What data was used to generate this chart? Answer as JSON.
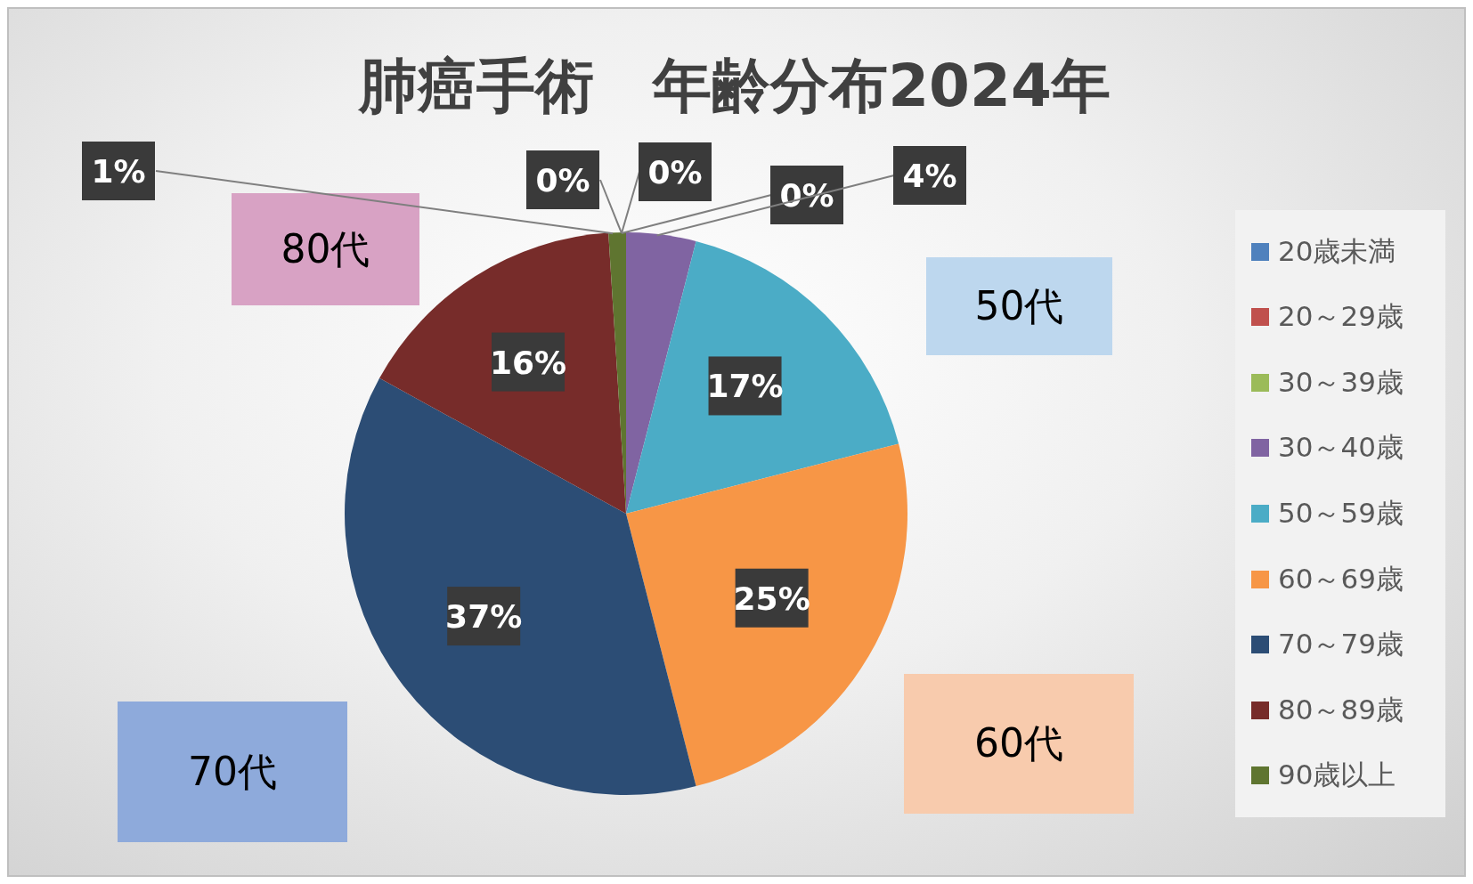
{
  "chart_data": {
    "type": "pie",
    "title": "肺癌手術　年齢分布2024年",
    "categories": [
      "20歳未満",
      "20～29歳",
      "30～39歳",
      "30～40歳",
      "50～59歳",
      "60～69歳",
      "70～79歳",
      "80～89歳",
      "90歳以上"
    ],
    "values": [
      0,
      0,
      0,
      4,
      17,
      25,
      37,
      16,
      1
    ],
    "colors": [
      "#4f81bd",
      "#c0504d",
      "#9bbb59",
      "#8064a2",
      "#4bacc6",
      "#f79646",
      "#2c4d75",
      "#772c2a",
      "#5f7530"
    ],
    "value_labels": [
      "0%",
      "0%",
      "0%",
      "4%",
      "17%",
      "25%",
      "37%",
      "16%",
      "1%"
    ],
    "legend": "right",
    "annotations": [
      "80代",
      "50代",
      "60代",
      "70代"
    ]
  }
}
